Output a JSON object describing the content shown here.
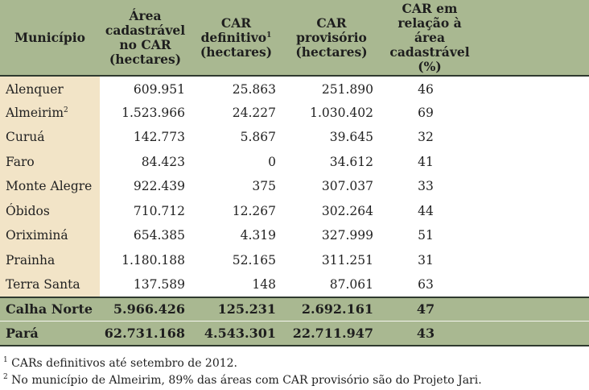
{
  "header": {
    "municipio": "Município",
    "area_lines": [
      "Área",
      "cadastrável",
      "no CAR",
      "(hectares)"
    ],
    "definitivo_lines": [
      "CAR",
      "definitivo",
      "(hectares)"
    ],
    "definitivo_sup": "1",
    "provisorio_lines": [
      "CAR",
      "provisório",
      "(hectares)"
    ],
    "percent_lines": [
      "CAR em",
      "relação à área",
      "cadastrável",
      "(%)"
    ]
  },
  "rows": [
    {
      "name": "Alenquer",
      "sup": "",
      "area": "609.951",
      "definitivo": "25.863",
      "provisorio": "251.890",
      "percent": "46"
    },
    {
      "name": "Almeirim",
      "sup": "2",
      "area": "1.523.966",
      "definitivo": "24.227",
      "provisorio": "1.030.402",
      "percent": "69"
    },
    {
      "name": "Curuá",
      "sup": "",
      "area": "142.773",
      "definitivo": "5.867",
      "provisorio": "39.645",
      "percent": "32"
    },
    {
      "name": "Faro",
      "sup": "",
      "area": "84.423",
      "definitivo": "0",
      "provisorio": "34.612",
      "percent": "41"
    },
    {
      "name": "Monte Alegre",
      "sup": "",
      "area": "922.439",
      "definitivo": "375",
      "provisorio": "307.037",
      "percent": "33"
    },
    {
      "name": "Óbidos",
      "sup": "",
      "area": "710.712",
      "definitivo": "12.267",
      "provisorio": "302.264",
      "percent": "44"
    },
    {
      "name": "Oriximiná",
      "sup": "",
      "area": "654.385",
      "definitivo": "4.319",
      "provisorio": "327.999",
      "percent": "51"
    },
    {
      "name": "Prainha",
      "sup": "",
      "area": "1.180.188",
      "definitivo": "52.165",
      "provisorio": "311.251",
      "percent": "31"
    },
    {
      "name": "Terra Santa",
      "sup": "",
      "area": "137.589",
      "definitivo": "148",
      "provisorio": "87.061",
      "percent": "63"
    }
  ],
  "totals": [
    {
      "name": "Calha Norte",
      "area": "5.966.426",
      "definitivo": "125.231",
      "provisorio": "2.692.161",
      "percent": "47"
    },
    {
      "name": "Pará",
      "area": "62.731.168",
      "definitivo": "4.543.301",
      "provisorio": "22.711.947",
      "percent": "43"
    }
  ],
  "footnotes": [
    {
      "sup": "1",
      "text": " CARs definitivos até setembro de 2012."
    },
    {
      "sup": "2",
      "text": " No município de Almeirim, 89% das áreas com CAR provisório são do Projeto Jari."
    }
  ],
  "colors": {
    "header_bg": "#a9b891",
    "name_col_bg": "#f2e4c7",
    "rule": "#2f3a2f"
  }
}
